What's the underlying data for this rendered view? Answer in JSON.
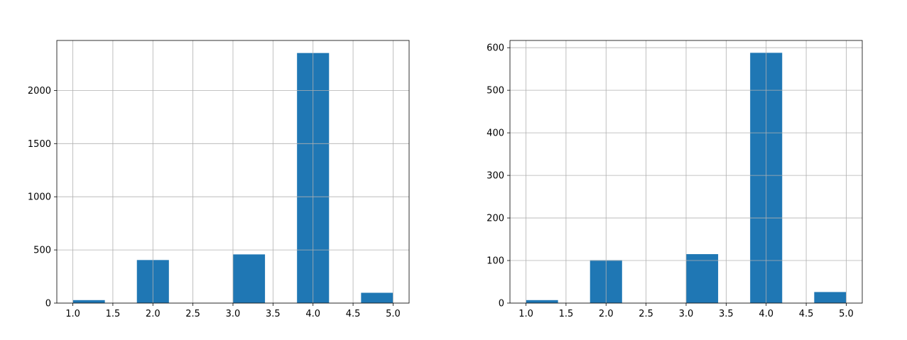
{
  "chart_data": [
    {
      "type": "bar",
      "histogram": true,
      "bins": [
        {
          "start": 1.0,
          "end": 1.4,
          "value": 28
        },
        {
          "start": 1.4,
          "end": 1.8,
          "value": 0
        },
        {
          "start": 1.8,
          "end": 2.2,
          "value": 405
        },
        {
          "start": 2.2,
          "end": 2.6,
          "value": 0
        },
        {
          "start": 2.6,
          "end": 3.0,
          "value": 0
        },
        {
          "start": 3.0,
          "end": 3.4,
          "value": 458
        },
        {
          "start": 3.4,
          "end": 3.8,
          "value": 0
        },
        {
          "start": 3.8,
          "end": 4.2,
          "value": 2352
        },
        {
          "start": 4.2,
          "end": 4.6,
          "value": 0
        },
        {
          "start": 4.6,
          "end": 5.0,
          "value": 97
        }
      ],
      "xlim": [
        0.8,
        5.2
      ],
      "ylim": [
        0,
        2470
      ],
      "xticks": [
        "1.0",
        "1.5",
        "2.0",
        "2.5",
        "3.0",
        "3.5",
        "4.0",
        "4.5",
        "5.0"
      ],
      "yticks": [
        "0",
        "500",
        "1000",
        "1500",
        "2000"
      ],
      "grid": true,
      "color": "#1f77b4"
    },
    {
      "type": "bar",
      "histogram": true,
      "bins": [
        {
          "start": 1.0,
          "end": 1.4,
          "value": 7
        },
        {
          "start": 1.4,
          "end": 1.8,
          "value": 0
        },
        {
          "start": 1.8,
          "end": 2.2,
          "value": 101
        },
        {
          "start": 2.2,
          "end": 2.6,
          "value": 0
        },
        {
          "start": 2.6,
          "end": 3.0,
          "value": 0
        },
        {
          "start": 3.0,
          "end": 3.4,
          "value": 115
        },
        {
          "start": 3.4,
          "end": 3.8,
          "value": 0
        },
        {
          "start": 3.8,
          "end": 4.2,
          "value": 588
        },
        {
          "start": 4.2,
          "end": 4.6,
          "value": 0
        },
        {
          "start": 4.6,
          "end": 5.0,
          "value": 26
        }
      ],
      "xlim": [
        0.8,
        5.2
      ],
      "ylim": [
        0,
        617
      ],
      "xticks": [
        "1.0",
        "1.5",
        "2.0",
        "2.5",
        "3.0",
        "3.5",
        "4.0",
        "4.5",
        "5.0"
      ],
      "yticks": [
        "0",
        "100",
        "200",
        "300",
        "400",
        "500",
        "600"
      ],
      "grid": true,
      "color": "#1f77b4"
    }
  ]
}
